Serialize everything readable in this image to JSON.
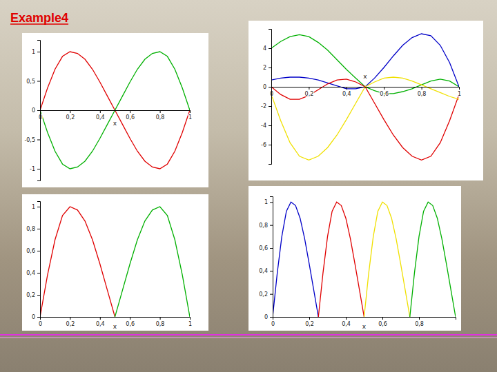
{
  "slide_title": "Example4",
  "chart_data": [
    {
      "type": "line",
      "xlabel": "x",
      "x": [
        0,
        0.05,
        0.1,
        0.15,
        0.2,
        0.25,
        0.3,
        0.35,
        0.4,
        0.45,
        0.5,
        0.55,
        0.6,
        0.65,
        0.7,
        0.75,
        0.8,
        0.85,
        0.9,
        0.95,
        1
      ],
      "xlim": [
        0,
        1
      ],
      "xticks": [
        0,
        {
          "value": 0.2,
          "label": "0,2"
        },
        {
          "value": 0.4,
          "label": "0,4"
        },
        {
          "value": 0.6,
          "label": "0,6"
        },
        {
          "value": 0.8,
          "label": "0,8"
        },
        1
      ],
      "ylim": [
        -1.2,
        1.2
      ],
      "yticks": [
        -1,
        {
          "value": -0.5,
          "label": "-0,5"
        },
        0,
        {
          "value": 0.5,
          "label": "0,5"
        },
        1
      ],
      "series": [
        {
          "color": "#e00000",
          "values": [
            0,
            0.38,
            0.7,
            0.92,
            1.0,
            0.97,
            0.87,
            0.7,
            0.48,
            0.24,
            0,
            -0.24,
            -0.48,
            -0.7,
            -0.87,
            -0.97,
            -1.0,
            -0.92,
            -0.7,
            -0.38,
            0
          ]
        },
        {
          "color": "#00b000",
          "values": [
            0,
            -0.38,
            -0.7,
            -0.92,
            -1.0,
            -0.97,
            -0.87,
            -0.7,
            -0.48,
            -0.24,
            0,
            0.24,
            0.48,
            0.7,
            0.87,
            0.97,
            1.0,
            0.92,
            0.7,
            0.38,
            0
          ]
        }
      ]
    },
    {
      "type": "line",
      "xlabel": "x",
      "x": [
        0,
        0.05,
        0.1,
        0.15,
        0.2,
        0.25,
        0.3,
        0.35,
        0.4,
        0.45,
        0.5,
        0.55,
        0.6,
        0.65,
        0.7,
        0.75,
        0.8,
        0.85,
        0.9,
        0.95,
        1
      ],
      "xlim": [
        0,
        1
      ],
      "xticks": [
        0,
        {
          "value": 0.2,
          "label": "0,2"
        },
        {
          "value": 0.4,
          "label": "0,4"
        },
        {
          "value": 0.6,
          "label": "0,6"
        },
        {
          "value": 0.8,
          "label": "0,8"
        },
        1
      ],
      "ylim": [
        -8,
        6
      ],
      "yticks": [
        -6,
        -4,
        -2,
        0,
        2,
        4
      ],
      "series": [
        {
          "color": "#00b000",
          "values": [
            4.0,
            4.7,
            5.2,
            5.4,
            5.2,
            4.6,
            3.8,
            2.8,
            1.8,
            0.9,
            0,
            -0.4,
            -0.7,
            -0.7,
            -0.5,
            -0.2,
            0.2,
            0.6,
            0.8,
            0.6,
            0
          ]
        },
        {
          "color": "#0000c8",
          "values": [
            0.7,
            0.9,
            1.0,
            1.0,
            0.9,
            0.7,
            0.4,
            0.1,
            -0.2,
            -0.2,
            0,
            0.9,
            2.0,
            3.2,
            4.3,
            5.1,
            5.5,
            5.3,
            4.3,
            2.5,
            0
          ]
        },
        {
          "color": "#e00000",
          "values": [
            0,
            -0.8,
            -1.3,
            -1.3,
            -0.9,
            -0.3,
            0.3,
            0.7,
            0.8,
            0.5,
            0,
            -1.7,
            -3.4,
            -5.0,
            -6.3,
            -7.2,
            -7.6,
            -7.2,
            -5.8,
            -3.5,
            -0.8
          ]
        },
        {
          "color": "#f0e000",
          "values": [
            -0.8,
            -3.5,
            -5.8,
            -7.2,
            -7.6,
            -7.2,
            -6.3,
            -5.0,
            -3.4,
            -1.7,
            0,
            0.5,
            0.9,
            1.0,
            0.9,
            0.6,
            0.2,
            -0.2,
            -0.6,
            -1.0,
            -1.3
          ]
        }
      ]
    },
    {
      "type": "line",
      "xlabel": "x",
      "x": [
        0,
        0.05,
        0.1,
        0.15,
        0.2,
        0.25,
        0.3,
        0.35,
        0.4,
        0.45,
        0.5,
        0.55,
        0.6,
        0.65,
        0.7,
        0.75,
        0.8,
        0.85,
        0.9,
        0.95,
        1
      ],
      "xlim": [
        0,
        1
      ],
      "xticks": [
        0,
        {
          "value": 0.2,
          "label": "0,2"
        },
        {
          "value": 0.4,
          "label": "0,4"
        },
        {
          "value": 0.6,
          "label": "0,6"
        },
        {
          "value": 0.8,
          "label": "0,8"
        },
        1
      ],
      "ylim": [
        0,
        1.05
      ],
      "yticks": [
        0,
        {
          "value": 0.2,
          "label": "0,2"
        },
        {
          "value": 0.4,
          "label": "0,4"
        },
        {
          "value": 0.6,
          "label": "0,6"
        },
        {
          "value": 0.8,
          "label": "0,8"
        },
        1
      ],
      "series": [
        {
          "color": "#e00000",
          "values": [
            0,
            0.38,
            0.7,
            0.92,
            1.0,
            0.97,
            0.87,
            0.7,
            0.48,
            0.24,
            0,
            null,
            null,
            null,
            null,
            null,
            null,
            null,
            null,
            null,
            null
          ]
        },
        {
          "color": "#00b000",
          "values": [
            null,
            null,
            null,
            null,
            null,
            null,
            null,
            null,
            null,
            null,
            0,
            0.24,
            0.48,
            0.7,
            0.87,
            0.97,
            1.0,
            0.92,
            0.7,
            0.38,
            0
          ]
        }
      ]
    },
    {
      "type": "line",
      "xlabel": "x",
      "x": [
        0,
        0.025,
        0.05,
        0.075,
        0.1,
        0.125,
        0.15,
        0.175,
        0.2,
        0.225,
        0.25,
        0.275,
        0.3,
        0.325,
        0.35,
        0.375,
        0.4,
        0.425,
        0.45,
        0.475,
        0.5,
        0.525,
        0.55,
        0.575,
        0.6,
        0.625,
        0.65,
        0.675,
        0.7,
        0.725,
        0.75,
        0.775,
        0.8,
        0.825,
        0.85,
        0.875,
        0.9,
        0.925,
        0.95,
        0.975,
        1
      ],
      "xlim": [
        0,
        1
      ],
      "xticks": [
        0,
        {
          "value": 0.2,
          "label": "0,2"
        },
        {
          "value": 0.4,
          "label": "0,4"
        },
        {
          "value": 0.6,
          "label": "0,6"
        },
        {
          "value": 0.8,
          "label": "0,8"
        }
      ],
      "ylim": [
        0,
        1.05
      ],
      "yticks": [
        0,
        {
          "value": 0.2,
          "label": "0,2"
        },
        {
          "value": 0.4,
          "label": "0,4"
        },
        {
          "value": 0.6,
          "label": "0,6"
        },
        {
          "value": 0.8,
          "label": "0,8"
        },
        1
      ],
      "series": [
        {
          "color": "#0000c8",
          "values": [
            0,
            0.38,
            0.7,
            0.92,
            1.0,
            0.97,
            0.86,
            0.68,
            0.46,
            0.23,
            0,
            null,
            null,
            null,
            null,
            null,
            null,
            null,
            null,
            null,
            null,
            null,
            null,
            null,
            null,
            null,
            null,
            null,
            null,
            null,
            null,
            null,
            null,
            null,
            null,
            null,
            null,
            null,
            null,
            null,
            null
          ]
        },
        {
          "color": "#e00000",
          "values": [
            null,
            null,
            null,
            null,
            null,
            null,
            null,
            null,
            null,
            null,
            0,
            0.38,
            0.7,
            0.92,
            1.0,
            0.97,
            0.86,
            0.68,
            0.46,
            0.23,
            0,
            null,
            null,
            null,
            null,
            null,
            null,
            null,
            null,
            null,
            null,
            null,
            null,
            null,
            null,
            null,
            null,
            null,
            null,
            null,
            null
          ]
        },
        {
          "color": "#f0e000",
          "values": [
            null,
            null,
            null,
            null,
            null,
            null,
            null,
            null,
            null,
            null,
            null,
            null,
            null,
            null,
            null,
            null,
            null,
            null,
            null,
            null,
            0,
            0.38,
            0.7,
            0.92,
            1.0,
            0.97,
            0.86,
            0.68,
            0.46,
            0.23,
            0,
            null,
            null,
            null,
            null,
            null,
            null,
            null,
            null,
            null,
            null
          ]
        },
        {
          "color": "#00b000",
          "values": [
            null,
            null,
            null,
            null,
            null,
            null,
            null,
            null,
            null,
            null,
            null,
            null,
            null,
            null,
            null,
            null,
            null,
            null,
            null,
            null,
            null,
            null,
            null,
            null,
            null,
            null,
            null,
            null,
            null,
            null,
            0,
            0.38,
            0.7,
            0.92,
            1.0,
            0.97,
            0.86,
            0.68,
            0.46,
            0.23,
            0
          ]
        }
      ]
    }
  ]
}
